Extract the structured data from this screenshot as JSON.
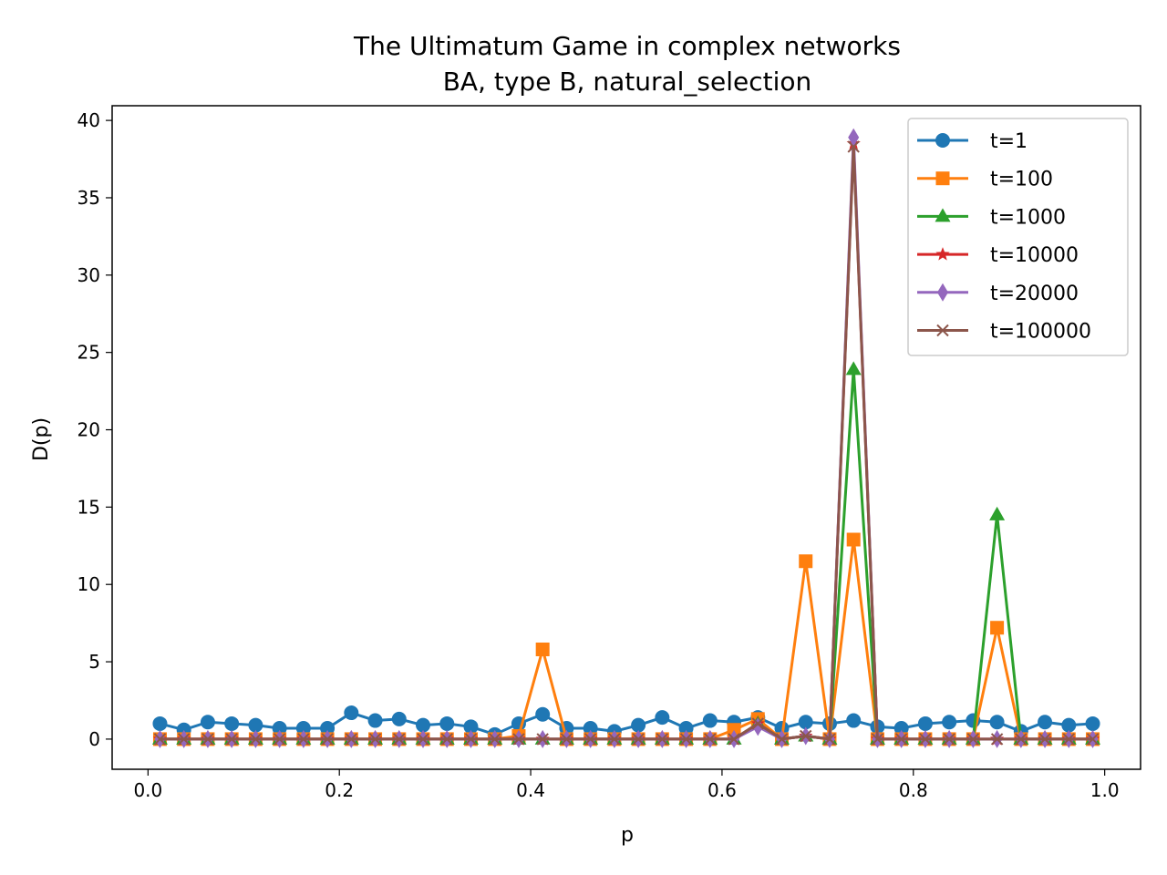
{
  "chart_data": {
    "type": "line",
    "title": "The Ultimatum Game in complex networks",
    "subtitle": "BA, type B, natural_selection",
    "xlabel": "p",
    "ylabel": "D(p)",
    "xlim": [
      -0.0375,
      1.0375
    ],
    "ylim": [
      -1.95,
      40.95
    ],
    "xticks": [
      0.0,
      0.2,
      0.4,
      0.6,
      0.8,
      1.0
    ],
    "xtick_labels": [
      "0.0",
      "0.2",
      "0.4",
      "0.6",
      "0.8",
      "1.0"
    ],
    "yticks": [
      0,
      5,
      10,
      15,
      20,
      25,
      30,
      35,
      40
    ],
    "ytick_labels": [
      "0",
      "5",
      "10",
      "15",
      "20",
      "25",
      "30",
      "35",
      "40"
    ],
    "grid": false,
    "legend_position": "top-right",
    "x": [
      0.0125,
      0.0375,
      0.0625,
      0.0875,
      0.1125,
      0.1375,
      0.1625,
      0.1875,
      0.2125,
      0.2375,
      0.2625,
      0.2875,
      0.3125,
      0.3375,
      0.3625,
      0.3875,
      0.4125,
      0.4375,
      0.4625,
      0.4875,
      0.5125,
      0.5375,
      0.5625,
      0.5875,
      0.6125,
      0.6375,
      0.6625,
      0.6875,
      0.7125,
      0.7375,
      0.7625,
      0.7875,
      0.8125,
      0.8375,
      0.8625,
      0.8875,
      0.9125,
      0.9375,
      0.9625,
      0.9875
    ],
    "series": [
      {
        "name": "t=1",
        "color": "#1f77b4",
        "marker": "circle",
        "values": [
          1.0,
          0.6,
          1.1,
          1.0,
          0.9,
          0.7,
          0.7,
          0.7,
          1.7,
          1.2,
          1.3,
          0.9,
          1.0,
          0.8,
          0.3,
          1.0,
          1.6,
          0.7,
          0.7,
          0.5,
          0.9,
          1.4,
          0.7,
          1.2,
          1.1,
          1.4,
          0.7,
          1.1,
          1.0,
          1.2,
          0.8,
          0.7,
          1.0,
          1.1,
          1.2,
          1.1,
          0.5,
          1.1,
          0.9,
          1.0
        ]
      },
      {
        "name": "t=100",
        "color": "#ff7f0e",
        "marker": "square",
        "values": [
          0,
          0,
          0,
          0,
          0,
          0,
          0,
          0,
          0,
          0,
          0,
          0,
          0,
          0,
          0,
          0.2,
          5.8,
          0,
          0,
          0,
          0,
          0,
          0,
          0,
          0.6,
          1.3,
          0,
          11.5,
          0,
          12.9,
          0,
          0,
          0,
          0,
          0,
          7.2,
          0,
          0,
          0,
          0
        ]
      },
      {
        "name": "t=1000",
        "color": "#2ca02c",
        "marker": "triangle",
        "values": [
          0,
          0,
          0,
          0,
          0,
          0,
          0,
          0,
          0,
          0,
          0,
          0,
          0,
          0,
          0,
          0,
          0,
          0,
          0,
          0,
          0,
          0,
          0,
          0,
          0,
          1.0,
          0,
          0.2,
          0,
          23.9,
          0,
          0,
          0,
          0,
          0,
          14.5,
          0,
          0,
          0,
          0
        ]
      },
      {
        "name": "t=10000",
        "color": "#d62728",
        "marker": "star",
        "values": [
          0,
          0,
          0,
          0,
          0,
          0,
          0,
          0,
          0,
          0,
          0,
          0,
          0,
          0,
          0,
          0,
          0,
          0,
          0,
          0,
          0,
          0,
          0,
          0,
          0,
          1.0,
          0,
          0.2,
          0,
          38.5,
          0,
          0,
          0,
          0,
          0,
          0,
          0,
          0,
          0,
          0
        ]
      },
      {
        "name": "t=20000",
        "color": "#9467bd",
        "marker": "diamond",
        "values": [
          0,
          0,
          0,
          0,
          0,
          0,
          0,
          0,
          0,
          0,
          0,
          0,
          0,
          0,
          0,
          0,
          0,
          0,
          0,
          0,
          0,
          0,
          0,
          0,
          0,
          0.8,
          0,
          0.2,
          0,
          38.9,
          0,
          0,
          0,
          0,
          0,
          0,
          0,
          0,
          0,
          0
        ]
      },
      {
        "name": "t=100000",
        "color": "#8c564b",
        "marker": "x",
        "values": [
          0,
          0,
          0,
          0,
          0,
          0,
          0,
          0,
          0,
          0,
          0,
          0,
          0,
          0,
          0,
          0,
          0,
          0,
          0,
          0,
          0,
          0,
          0,
          0,
          0,
          1.0,
          0,
          0.2,
          0,
          38.3,
          0,
          0,
          0,
          0,
          0,
          0,
          0,
          0,
          0,
          0
        ]
      }
    ]
  }
}
